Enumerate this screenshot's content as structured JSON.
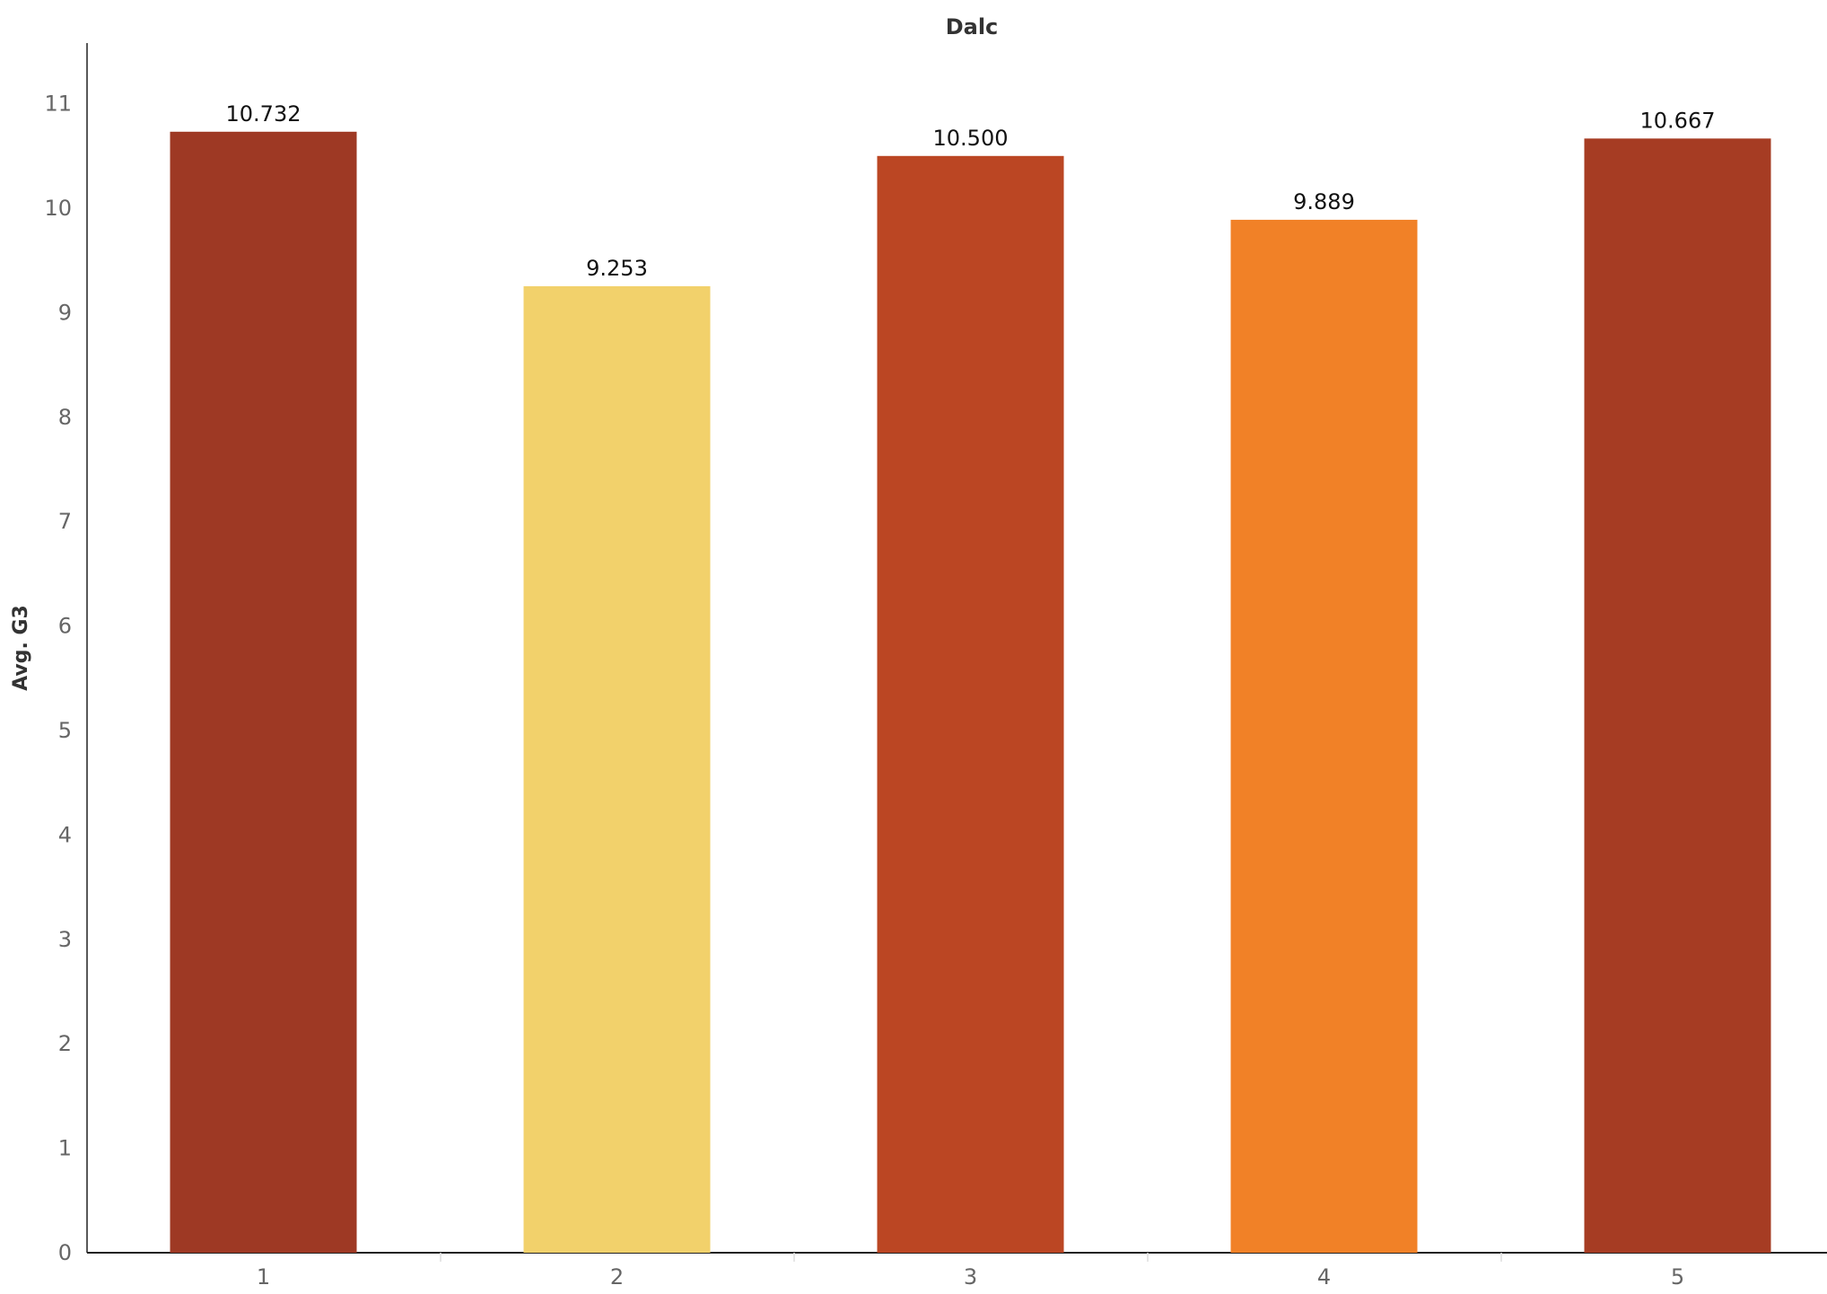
{
  "chart_data": {
    "type": "bar",
    "title": "Dalc",
    "xlabel": "",
    "ylabel": "Avg. G3",
    "categories": [
      "1",
      "2",
      "3",
      "4",
      "5"
    ],
    "values": [
      10.732,
      9.253,
      10.5,
      9.889,
      10.667
    ],
    "data_labels": [
      "10.732",
      "9.253",
      "10.500",
      "9.889",
      "10.667"
    ],
    "colors": [
      "#9e3924",
      "#f2d16b",
      "#bb4623",
      "#f18127",
      "#a63c23"
    ],
    "ylim": [
      0,
      11.5
    ],
    "yticks": [
      "0",
      "1",
      "2",
      "3",
      "4",
      "5",
      "6",
      "7",
      "8",
      "9",
      "10",
      "11"
    ],
    "grid": false,
    "legend": "none"
  }
}
